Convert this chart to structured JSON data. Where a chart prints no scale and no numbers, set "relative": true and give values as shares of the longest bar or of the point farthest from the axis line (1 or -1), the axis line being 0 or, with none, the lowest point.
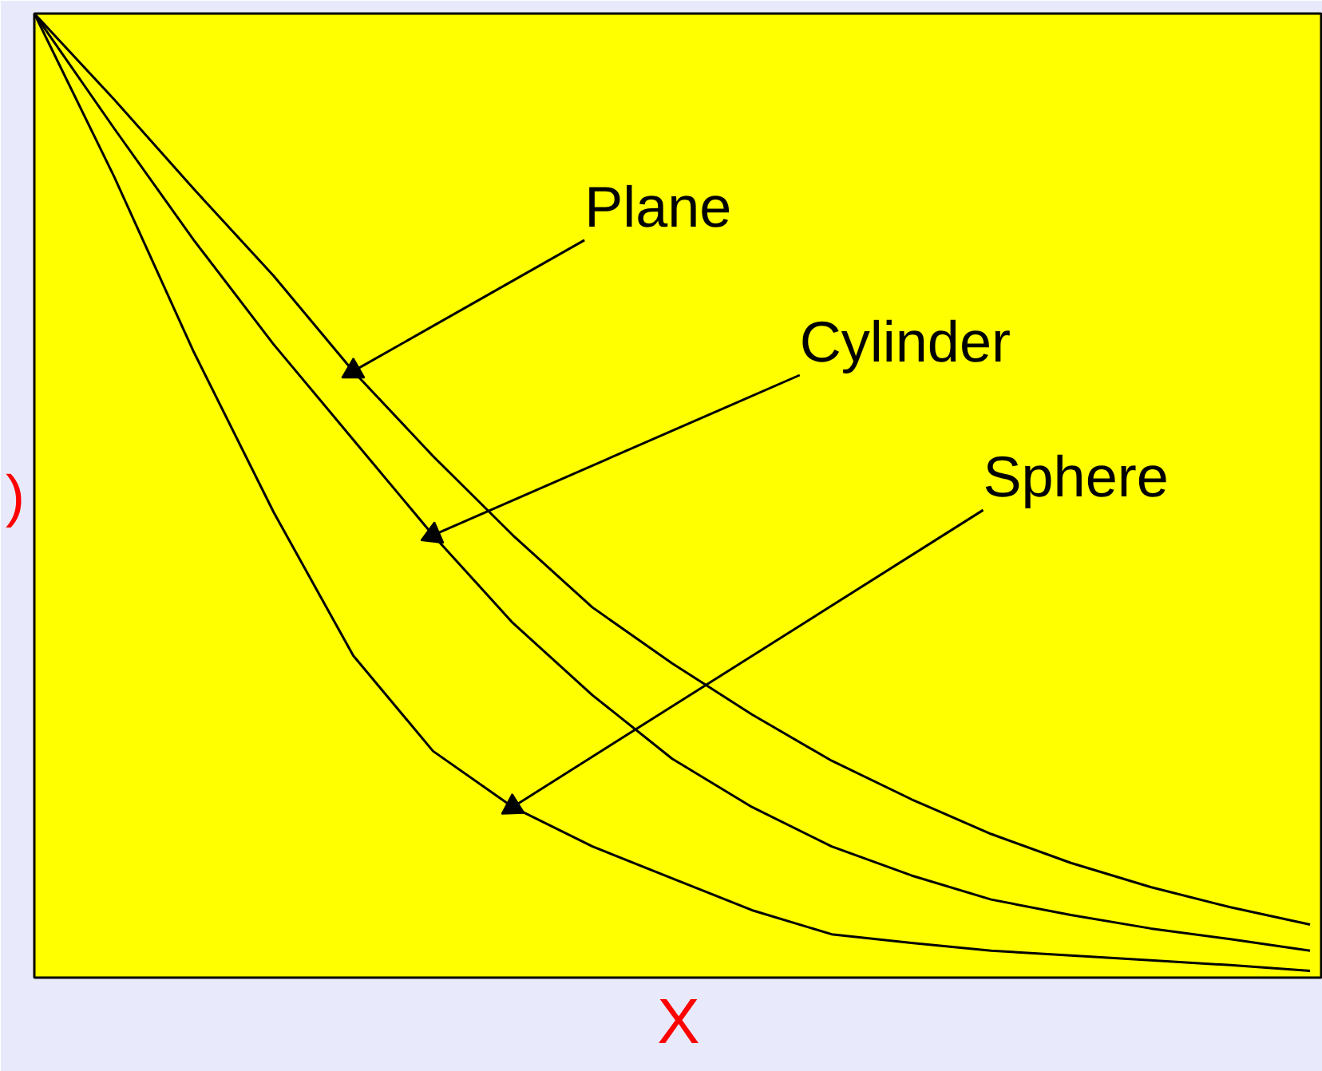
{
  "chart_data": {
    "type": "line",
    "relative": true,
    "xlabel": "X",
    "ylabel": ")",
    "categories": [
      null,
      null,
      null,
      null,
      null,
      null,
      null,
      null,
      null,
      null,
      null,
      null,
      null,
      null,
      null,
      null,
      null
    ],
    "series": [
      {
        "name": "Plane",
        "color": "#000000",
        "values": [
          1.0,
          0.911,
          0.818,
          0.728,
          0.629,
          0.541,
          0.459,
          0.384,
          0.326,
          0.273,
          0.225,
          0.185,
          0.149,
          0.119,
          0.094,
          0.073,
          0.055
        ]
      },
      {
        "name": "Cylinder",
        "color": "#000000",
        "values": [
          1.0,
          0.881,
          0.765,
          0.657,
          0.558,
          0.459,
          0.368,
          0.293,
          0.227,
          0.177,
          0.136,
          0.106,
          0.081,
          0.065,
          0.051,
          0.04,
          0.028
        ]
      },
      {
        "name": "Sphere",
        "color": "#000000",
        "values": [
          1.0,
          0.831,
          0.649,
          0.483,
          0.334,
          0.235,
          0.177,
          0.136,
          0.103,
          0.07,
          0.045,
          0.036,
          0.028,
          0.023,
          0.018,
          0.013,
          0.007
        ]
      }
    ],
    "legend": false,
    "grid": false,
    "marker": "none",
    "line_style": "solid"
  }
}
